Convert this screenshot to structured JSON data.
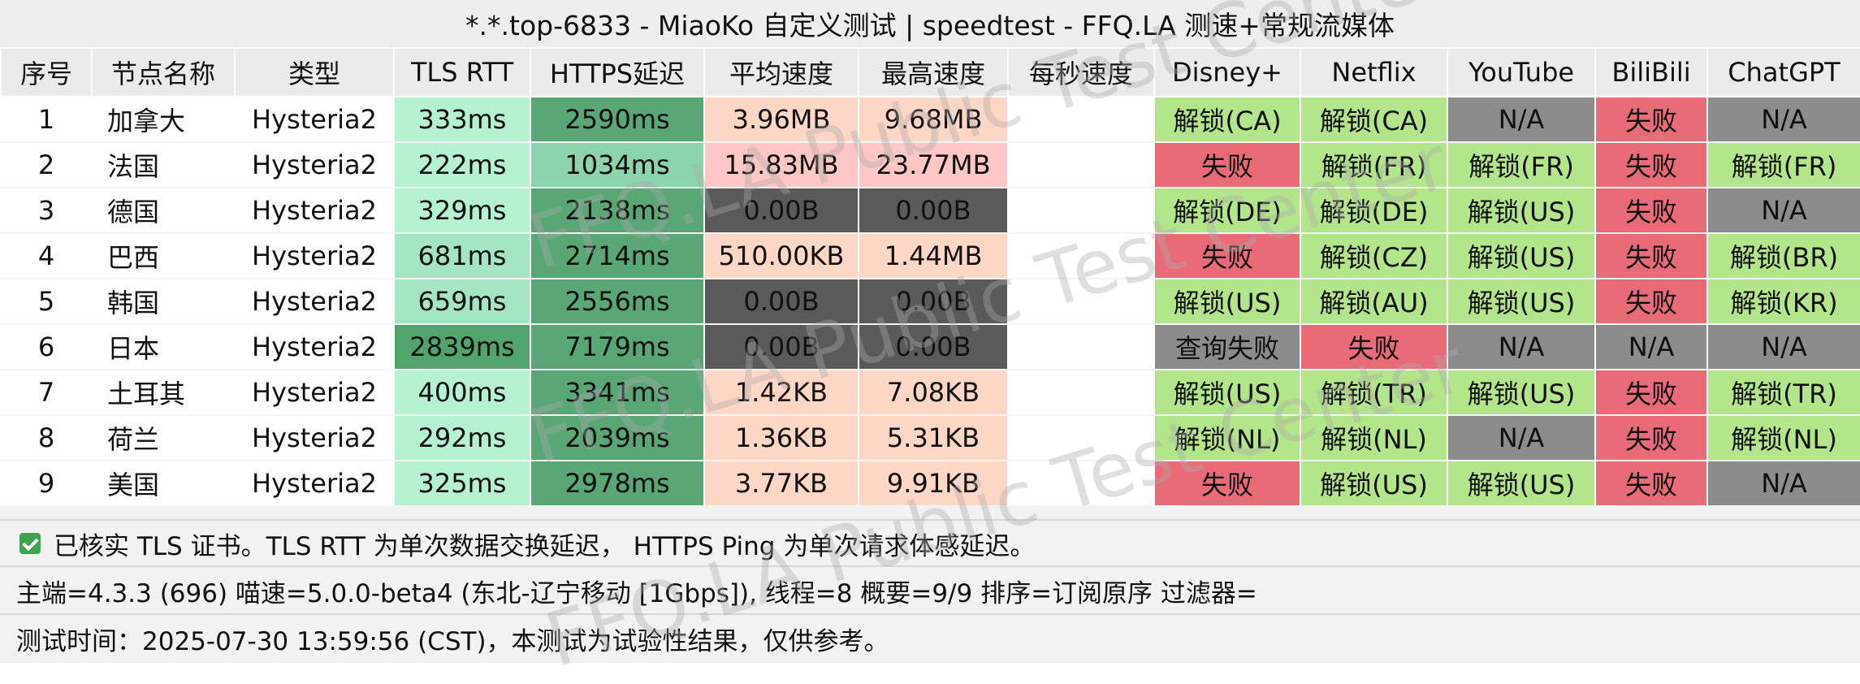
{
  "title": "*.*.top-6833 - MiaoKo 自定义测试 | speedtest - FFQ.LA 测速+常规流媒体",
  "columns": [
    "序号",
    "节点名称",
    "类型",
    "TLS RTT",
    "HTTPS延迟",
    "平均速度",
    "最高速度",
    "每秒速度",
    "Disney+",
    "Netflix",
    "YouTube",
    "BiliBili",
    "ChatGPT"
  ],
  "rows": [
    {
      "idx": "1",
      "name": "加拿大",
      "type": "Hysteria2",
      "tls": "333ms",
      "https": "2590ms",
      "avg": "3.96MB",
      "max": "9.68MB",
      "per": "",
      "disney": "解锁(CA)",
      "netflix": "解锁(CA)",
      "youtube": "N/A",
      "bilibili": "失败",
      "chatgpt": "N/A"
    },
    {
      "idx": "2",
      "name": "法国",
      "type": "Hysteria2",
      "tls": "222ms",
      "https": "1034ms",
      "avg": "15.83MB",
      "max": "23.77MB",
      "per": "",
      "disney": "失败",
      "netflix": "解锁(FR)",
      "youtube": "解锁(FR)",
      "bilibili": "失败",
      "chatgpt": "解锁(FR)"
    },
    {
      "idx": "3",
      "name": "德国",
      "type": "Hysteria2",
      "tls": "329ms",
      "https": "2138ms",
      "avg": "0.00B",
      "max": "0.00B",
      "per": "",
      "disney": "解锁(DE)",
      "netflix": "解锁(DE)",
      "youtube": "解锁(US)",
      "bilibili": "失败",
      "chatgpt": "N/A"
    },
    {
      "idx": "4",
      "name": "巴西",
      "type": "Hysteria2",
      "tls": "681ms",
      "https": "2714ms",
      "avg": "510.00KB",
      "max": "1.44MB",
      "per": "",
      "disney": "失败",
      "netflix": "解锁(CZ)",
      "youtube": "解锁(US)",
      "bilibili": "失败",
      "chatgpt": "解锁(BR)"
    },
    {
      "idx": "5",
      "name": "韩国",
      "type": "Hysteria2",
      "tls": "659ms",
      "https": "2556ms",
      "avg": "0.00B",
      "max": "0.00B",
      "per": "",
      "disney": "解锁(US)",
      "netflix": "解锁(AU)",
      "youtube": "解锁(US)",
      "bilibili": "失败",
      "chatgpt": "解锁(KR)"
    },
    {
      "idx": "6",
      "name": "日本",
      "type": "Hysteria2",
      "tls": "2839ms",
      "https": "7179ms",
      "avg": "0.00B",
      "max": "0.00B",
      "per": "",
      "disney": "查询失败",
      "netflix": "失败",
      "youtube": "N/A",
      "bilibili": "N/A",
      "chatgpt": "N/A"
    },
    {
      "idx": "7",
      "name": "土耳其",
      "type": "Hysteria2",
      "tls": "400ms",
      "https": "3341ms",
      "avg": "1.42KB",
      "max": "7.08KB",
      "per": "",
      "disney": "解锁(US)",
      "netflix": "解锁(TR)",
      "youtube": "解锁(US)",
      "bilibili": "失败",
      "chatgpt": "解锁(TR)"
    },
    {
      "idx": "8",
      "name": "荷兰",
      "type": "Hysteria2",
      "tls": "292ms",
      "https": "2039ms",
      "avg": "1.36KB",
      "max": "5.31KB",
      "per": "",
      "disney": "解锁(NL)",
      "netflix": "解锁(NL)",
      "youtube": "N/A",
      "bilibili": "失败",
      "chatgpt": "解锁(NL)"
    },
    {
      "idx": "9",
      "name": "美国",
      "type": "Hysteria2",
      "tls": "325ms",
      "https": "2978ms",
      "avg": "3.77KB",
      "max": "9.91KB",
      "per": "",
      "disney": "失败",
      "netflix": "解锁(US)",
      "youtube": "解锁(US)",
      "bilibili": "失败",
      "chatgpt": "N/A"
    }
  ],
  "cell_colors": {
    "unlock": "#b3e58a",
    "fail": "#ea6b78",
    "na": "#8c8c8c",
    "query_fail": "#8c8c8c",
    "speed_zero": "#5a5a5a",
    "speed_low": "#ffd7c4",
    "speed_high": "#ffc7c3",
    "tls_light": "#b5f2d2",
    "tls_mid": "#a4e6c4",
    "tls_dark": "#52a46d",
    "https_dark": "#5aa776",
    "https_light": "#8bd4ac"
  },
  "footer": {
    "line1": "已核实 TLS 证书。TLS RTT 为单次数据交换延迟， HTTPS Ping 为单次请求体感延迟。",
    "line2": "主端=4.3.3 (696) 喵速=5.0.0-beta4 (东北-辽宁移动 [1Gbps]), 线程=8 概要=9/9 排序=订阅原序 过滤器=",
    "line3": "测试时间：2025-07-30 13:59:56 (CST)，本测试为试验性结果，仅供参考。"
  },
  "watermark": {
    "text": "FFQ.LA Public Test Center",
    "color": "#a0a0a0"
  }
}
